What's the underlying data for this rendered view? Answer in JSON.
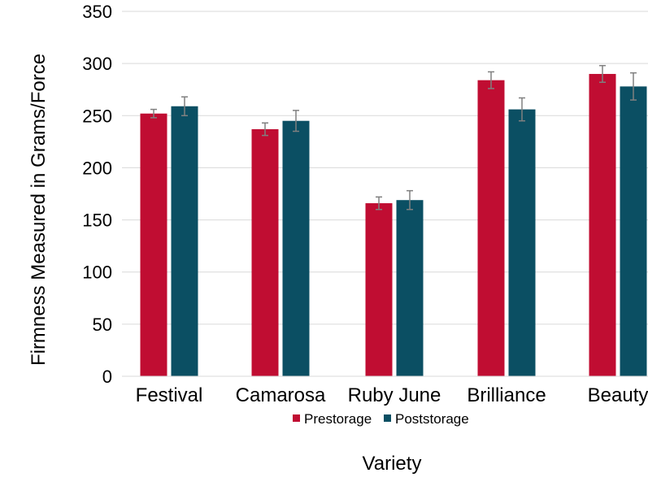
{
  "chart_data": {
    "type": "bar",
    "title": "",
    "xlabel": "Variety",
    "ylabel": "Firmness Measured in Grams/Force",
    "categories": [
      "Festival",
      "Camarosa",
      "Ruby June",
      "Brilliance",
      "Beauty"
    ],
    "series": [
      {
        "name": "Prestorage",
        "color": "#C00D32",
        "values": [
          252,
          237,
          166,
          284,
          290
        ],
        "errors": [
          4,
          6,
          6,
          8,
          8
        ]
      },
      {
        "name": "Poststorage",
        "color": "#0B4F63",
        "values": [
          259,
          245,
          169,
          256,
          278
        ],
        "errors": [
          9,
          10,
          9,
          11,
          13
        ]
      }
    ],
    "ylim": [
      0,
      350
    ],
    "yticks": [
      0,
      50,
      100,
      150,
      200,
      250,
      300,
      350
    ],
    "grid": true,
    "legend_position": "bottom",
    "error_bar_color": "#808080"
  }
}
